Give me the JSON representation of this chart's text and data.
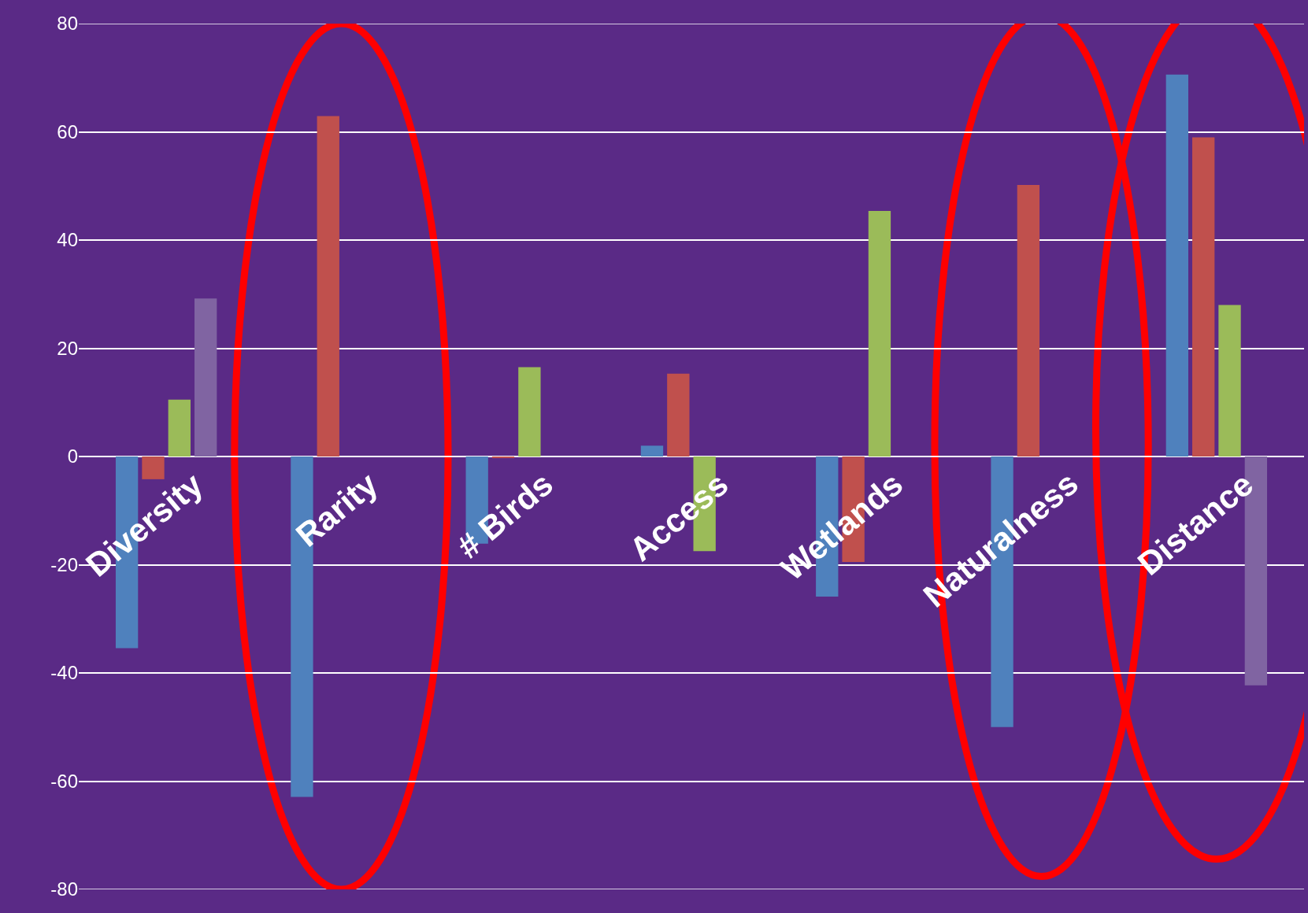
{
  "chart_data": {
    "type": "bar",
    "categories": [
      "Diversity",
      "Rarity",
      "# Birds",
      "Access",
      "Wetlands",
      "Naturalness",
      "Distance"
    ],
    "series": [
      {
        "color": "#4f81bd",
        "values": [
          -35.4,
          -62.9,
          -16.1,
          2.0,
          -25.9,
          -50.0,
          70.6
        ]
      },
      {
        "color": "#c0504d",
        "values": [
          -4.2,
          62.9,
          -0.3,
          15.3,
          -19.5,
          50.2,
          59.0
        ]
      },
      {
        "color": "#9bbb59",
        "values": [
          10.5,
          null,
          16.5,
          -17.5,
          45.4,
          null,
          28.0
        ]
      },
      {
        "color": "#8064a2",
        "values": [
          29.2,
          null,
          null,
          null,
          null,
          null,
          -42.3
        ]
      }
    ],
    "ylim": [
      -80,
      80
    ],
    "yticks": [
      -80,
      -60,
      -40,
      -20,
      0,
      20,
      40,
      60,
      80
    ],
    "grid": "y"
  }
}
